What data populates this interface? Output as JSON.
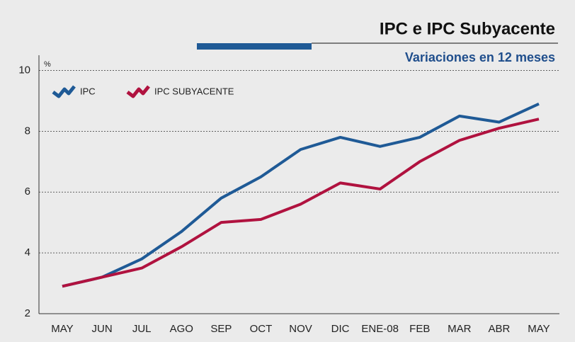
{
  "chart_data": {
    "type": "line",
    "title": "IPC e IPC Subyacente",
    "subtitle": "Variaciones en 12 meses",
    "y_label": "%",
    "categories": [
      "MAY",
      "JUN",
      "JUL",
      "AGO",
      "SEP",
      "OCT",
      "NOV",
      "DIC",
      "ENE-08",
      "FEB",
      "MAR",
      "ABR",
      "MAY"
    ],
    "series": [
      {
        "name": "IPC",
        "color": "#1f5a96",
        "values": [
          2.9,
          3.2,
          3.8,
          4.7,
          5.8,
          6.5,
          7.4,
          7.8,
          7.5,
          7.8,
          8.5,
          8.3,
          8.9
        ]
      },
      {
        "name": "IPC SUBYACENTE",
        "color": "#b0123f",
        "values": [
          2.9,
          3.2,
          3.5,
          4.2,
          5.0,
          5.1,
          5.6,
          6.3,
          6.1,
          7.0,
          7.7,
          8.1,
          8.4
        ]
      }
    ],
    "ylim": [
      2,
      10.5
    ],
    "yticks": [
      2,
      4,
      6,
      8,
      10
    ],
    "grid": true,
    "legend": "top-left"
  }
}
